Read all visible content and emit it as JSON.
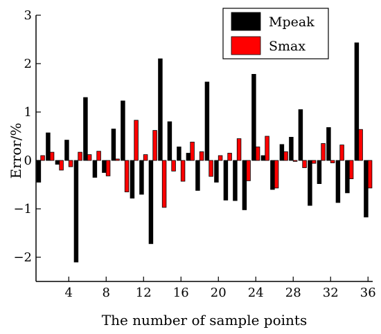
{
  "chart_data": {
    "type": "bar",
    "xlabel": "The number of sample points",
    "ylabel": "Error/%",
    "x": [
      1,
      2,
      3,
      4,
      5,
      6,
      7,
      8,
      9,
      10,
      11,
      12,
      13,
      14,
      15,
      16,
      17,
      18,
      19,
      20,
      21,
      22,
      23,
      24,
      25,
      26,
      27,
      28,
      29,
      30,
      31,
      32,
      33,
      34,
      35,
      36
    ],
    "x_ticks": [
      4,
      8,
      12,
      16,
      20,
      24,
      28,
      32,
      36
    ],
    "y_ticks": [
      -2,
      -1,
      0,
      1,
      2,
      3
    ],
    "xlim": [
      0.5,
      36.5
    ],
    "ylim": [
      -2.5,
      3
    ],
    "grid": false,
    "legend_position": "top-right",
    "series": [
      {
        "name": "Mpeak",
        "color": "#000000",
        "values": [
          -0.45,
          0.57,
          -0.08,
          0.42,
          -2.1,
          1.3,
          -0.35,
          -0.25,
          0.65,
          1.23,
          -0.78,
          -0.7,
          -1.72,
          2.1,
          0.8,
          0.28,
          0.15,
          -0.62,
          1.62,
          -0.45,
          -0.82,
          -0.83,
          -1.02,
          1.78,
          0.1,
          -0.6,
          0.33,
          0.48,
          1.05,
          -0.93,
          -0.48,
          0.68,
          -0.87,
          -0.67,
          2.43,
          -1.17
        ]
      },
      {
        "name": "Smax",
        "color": "#ff0000",
        "values": [
          0.1,
          0.17,
          -0.2,
          -0.13,
          0.17,
          0.12,
          0.19,
          -0.32,
          0.03,
          -0.65,
          0.83,
          0.12,
          0.62,
          -0.97,
          -0.22,
          -0.43,
          0.38,
          0.18,
          -0.33,
          0.1,
          0.15,
          0.45,
          -0.42,
          0.28,
          0.5,
          -0.57,
          0.18,
          -0.02,
          -0.15,
          -0.06,
          0.35,
          -0.05,
          0.32,
          -0.38,
          0.64,
          -0.57
        ]
      }
    ]
  }
}
